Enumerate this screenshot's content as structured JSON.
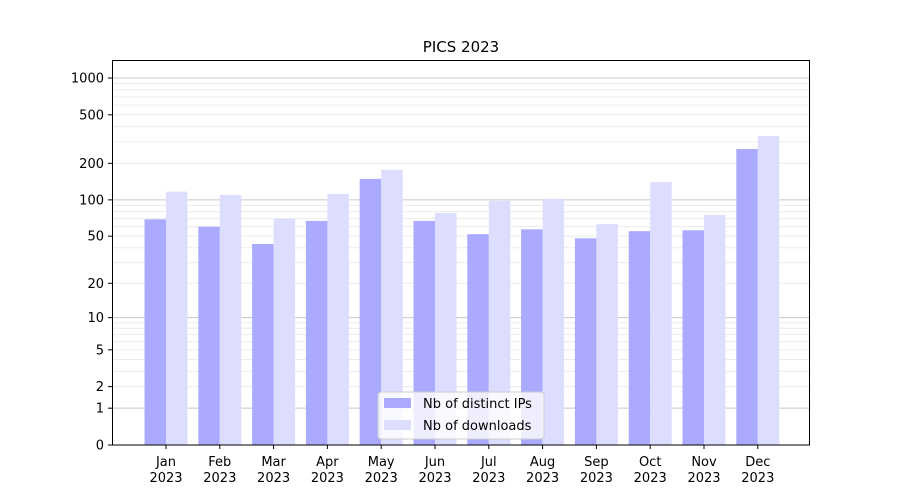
{
  "chart_data": {
    "type": "bar",
    "title": "PICS 2023",
    "xlabel": "",
    "ylabel": "",
    "yscale": "log(1+x)",
    "ylim": [
      0,
      1300
    ],
    "grid": true,
    "legend_position": "lower-center",
    "categories": [
      "Jan\n2023",
      "Feb\n2023",
      "Mar\n2023",
      "Apr\n2023",
      "May\n2023",
      "Jun\n2023",
      "Jul\n2023",
      "Aug\n2023",
      "Sep\n2023",
      "Oct\n2023",
      "Nov\n2023",
      "Dec\n2023"
    ],
    "yticks": [
      0,
      1,
      2,
      5,
      10,
      20,
      50,
      100,
      200,
      500,
      1000
    ],
    "ytick_labels": [
      "0",
      "1",
      "2",
      "5",
      "10",
      "20",
      "50",
      "100",
      "200",
      "500",
      "1000"
    ],
    "series": [
      {
        "name": "Nb of distinct IPs",
        "color": "#aaaaff",
        "values": [
          69,
          60,
          43,
          67,
          149,
          67,
          52,
          57,
          48,
          55,
          56,
          262
        ]
      },
      {
        "name": "Nb of downloads",
        "color": "#ddddff",
        "values": [
          117,
          110,
          70,
          112,
          177,
          78,
          98,
          102,
          63,
          140,
          75,
          335
        ]
      }
    ]
  }
}
